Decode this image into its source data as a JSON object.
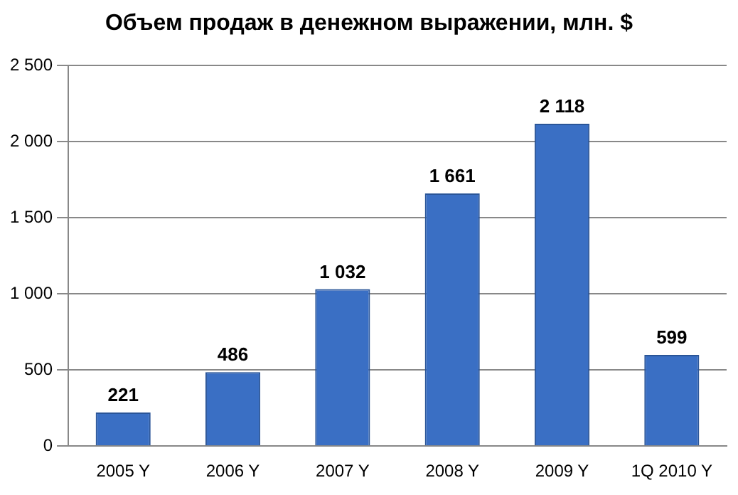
{
  "chart_data": {
    "type": "bar",
    "title": "Объем продаж в денежном выражении, млн. $",
    "categories": [
      "2005 Y",
      "2006 Y",
      "2007 Y",
      "2008 Y",
      "2009 Y",
      "1Q 2010 Y"
    ],
    "values": [
      221,
      486,
      1032,
      1661,
      2118,
      599
    ],
    "value_labels": [
      "221",
      "486",
      "1 032",
      "1 661",
      "2 118",
      "599"
    ],
    "color": "#3a6fc4",
    "ylim": [
      0,
      2500
    ],
    "yticks": [
      0,
      {
        "value": 500,
        "label": "500"
      },
      {
        "value": 1000,
        "label": "1 000"
      },
      {
        "value": 1500,
        "label": "1 500"
      },
      {
        "value": 2000,
        "label": "2 000"
      },
      {
        "value": 2500,
        "label": "2 500"
      }
    ],
    "grid": "y"
  }
}
